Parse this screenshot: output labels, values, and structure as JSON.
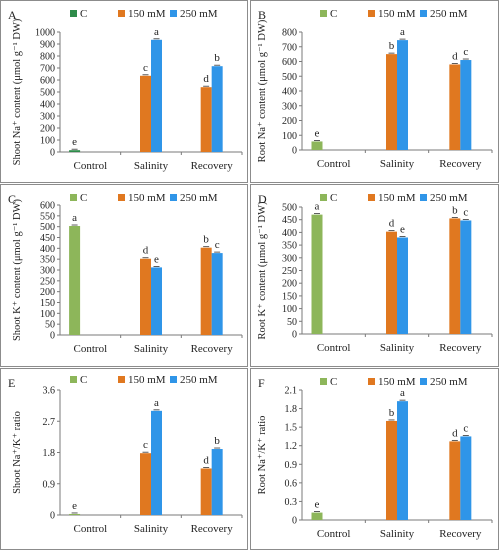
{
  "legend": {
    "labels": [
      "C",
      "150 mM",
      "250 mM"
    ]
  },
  "colors": {
    "panel_border": "#8c8c8c",
    "axis": "#7a7a7a",
    "text": "#222222",
    "C_dark": "#2e8b4a",
    "C_light": "#8db65a",
    "150": "#e07820",
    "250": "#2f95e8"
  },
  "chart_data": [
    {
      "type": "bar",
      "panel": "A",
      "ylabel": "Shoot Na⁺ content (μmol g⁻¹ DW)",
      "categories": [
        "Control",
        "Salinity",
        "Recovery"
      ],
      "ylim": [
        0,
        1000
      ],
      "yticks": [
        0,
        100,
        200,
        300,
        400,
        500,
        600,
        700,
        800,
        900,
        1000
      ],
      "series_colors": [
        "#2e8b4a",
        "#e07820",
        "#2f95e8"
      ],
      "bars": [
        {
          "category": "Control",
          "series": "C",
          "value": 15,
          "label": "e"
        },
        {
          "category": "Salinity",
          "series": "150 mM",
          "value": 635,
          "label": "c"
        },
        {
          "category": "Salinity",
          "series": "250 mM",
          "value": 935,
          "label": "a"
        },
        {
          "category": "Recovery",
          "series": "150 mM",
          "value": 540,
          "label": "d"
        },
        {
          "category": "Recovery",
          "series": "250 mM",
          "value": 715,
          "label": "b"
        }
      ]
    },
    {
      "type": "bar",
      "panel": "B",
      "ylabel": "Root Na⁺ content (μmol g⁻¹ DW)",
      "categories": [
        "Control",
        "Salinity",
        "Recovery"
      ],
      "ylim": [
        0,
        800
      ],
      "yticks": [
        0,
        100,
        200,
        300,
        400,
        500,
        600,
        700,
        800
      ],
      "series_colors": [
        "#8db65a",
        "#e07820",
        "#2f95e8"
      ],
      "bars": [
        {
          "category": "Control",
          "series": "C",
          "value": 58,
          "label": "e"
        },
        {
          "category": "Salinity",
          "series": "150 mM",
          "value": 650,
          "label": "b"
        },
        {
          "category": "Salinity",
          "series": "250 mM",
          "value": 745,
          "label": "a"
        },
        {
          "category": "Recovery",
          "series": "150 mM",
          "value": 580,
          "label": "d"
        },
        {
          "category": "Recovery",
          "series": "250 mM",
          "value": 610,
          "label": "c"
        }
      ]
    },
    {
      "type": "bar",
      "panel": "C",
      "ylabel": "Shoot K⁺ content (μmol g⁻¹ DW)",
      "categories": [
        "Control",
        "Salinity",
        "Recovery"
      ],
      "ylim": [
        0,
        600
      ],
      "yticks": [
        0,
        50,
        100,
        150,
        200,
        250,
        300,
        350,
        400,
        450,
        500,
        550,
        600
      ],
      "series_colors": [
        "#8db65a",
        "#e07820",
        "#2f95e8"
      ],
      "bars": [
        {
          "category": "Control",
          "series": "C",
          "value": 503,
          "label": "a"
        },
        {
          "category": "Salinity",
          "series": "150 mM",
          "value": 352,
          "label": "d"
        },
        {
          "category": "Salinity",
          "series": "250 mM",
          "value": 312,
          "label": "e"
        },
        {
          "category": "Recovery",
          "series": "150 mM",
          "value": 403,
          "label": "b"
        },
        {
          "category": "Recovery",
          "series": "250 mM",
          "value": 378,
          "label": "c"
        }
      ]
    },
    {
      "type": "bar",
      "panel": "D",
      "ylabel": "Root K⁺ content (μmol g⁻¹ DW)",
      "categories": [
        "Control",
        "Salinity",
        "Recovery"
      ],
      "ylim": [
        0,
        500
      ],
      "yticks": [
        0,
        50,
        100,
        150,
        200,
        250,
        300,
        350,
        400,
        450,
        500
      ],
      "series_colors": [
        "#8db65a",
        "#e07820",
        "#2f95e8"
      ],
      "bars": [
        {
          "category": "Control",
          "series": "C",
          "value": 470,
          "label": "a"
        },
        {
          "category": "Salinity",
          "series": "150 mM",
          "value": 403,
          "label": "d"
        },
        {
          "category": "Salinity",
          "series": "250 mM",
          "value": 380,
          "label": "e"
        },
        {
          "category": "Recovery",
          "series": "150 mM",
          "value": 455,
          "label": "b"
        },
        {
          "category": "Recovery",
          "series": "250 mM",
          "value": 447,
          "label": "c"
        }
      ]
    },
    {
      "type": "bar",
      "panel": "E",
      "ylabel": "Shoot Na⁺/K⁺ ratio",
      "categories": [
        "Control",
        "Salinity",
        "Recovery"
      ],
      "ylim": [
        0,
        3.6
      ],
      "yticks": [
        "0",
        "0.9",
        "1.8",
        "2.7",
        "3.6"
      ],
      "series_colors": [
        "#8db65a",
        "#e07820",
        "#2f95e8"
      ],
      "bars": [
        {
          "category": "Control",
          "series": "C",
          "value": 0.03,
          "label": "e"
        },
        {
          "category": "Salinity",
          "series": "150 mM",
          "value": 1.78,
          "label": "c"
        },
        {
          "category": "Salinity",
          "series": "250 mM",
          "value": 3.0,
          "label": "a"
        },
        {
          "category": "Recovery",
          "series": "150 mM",
          "value": 1.34,
          "label": "d"
        },
        {
          "category": "Recovery",
          "series": "250 mM",
          "value": 1.9,
          "label": "b"
        }
      ]
    },
    {
      "type": "bar",
      "panel": "F",
      "ylabel": "Root Na⁺/K⁺ ratio",
      "categories": [
        "Control",
        "Salinity",
        "Recovery"
      ],
      "ylim": [
        0,
        2.1
      ],
      "yticks": [
        "0",
        "0.3",
        "0.6",
        "0.9",
        "1.2",
        "1.5",
        "1.8",
        "2.1"
      ],
      "series_colors": [
        "#8db65a",
        "#e07820",
        "#2f95e8"
      ],
      "bars": [
        {
          "category": "Control",
          "series": "C",
          "value": 0.12,
          "label": "e"
        },
        {
          "category": "Salinity",
          "series": "150 mM",
          "value": 1.6,
          "label": "b"
        },
        {
          "category": "Salinity",
          "series": "250 mM",
          "value": 1.92,
          "label": "a"
        },
        {
          "category": "Recovery",
          "series": "150 mM",
          "value": 1.27,
          "label": "d"
        },
        {
          "category": "Recovery",
          "series": "250 mM",
          "value": 1.35,
          "label": "c"
        }
      ]
    }
  ]
}
